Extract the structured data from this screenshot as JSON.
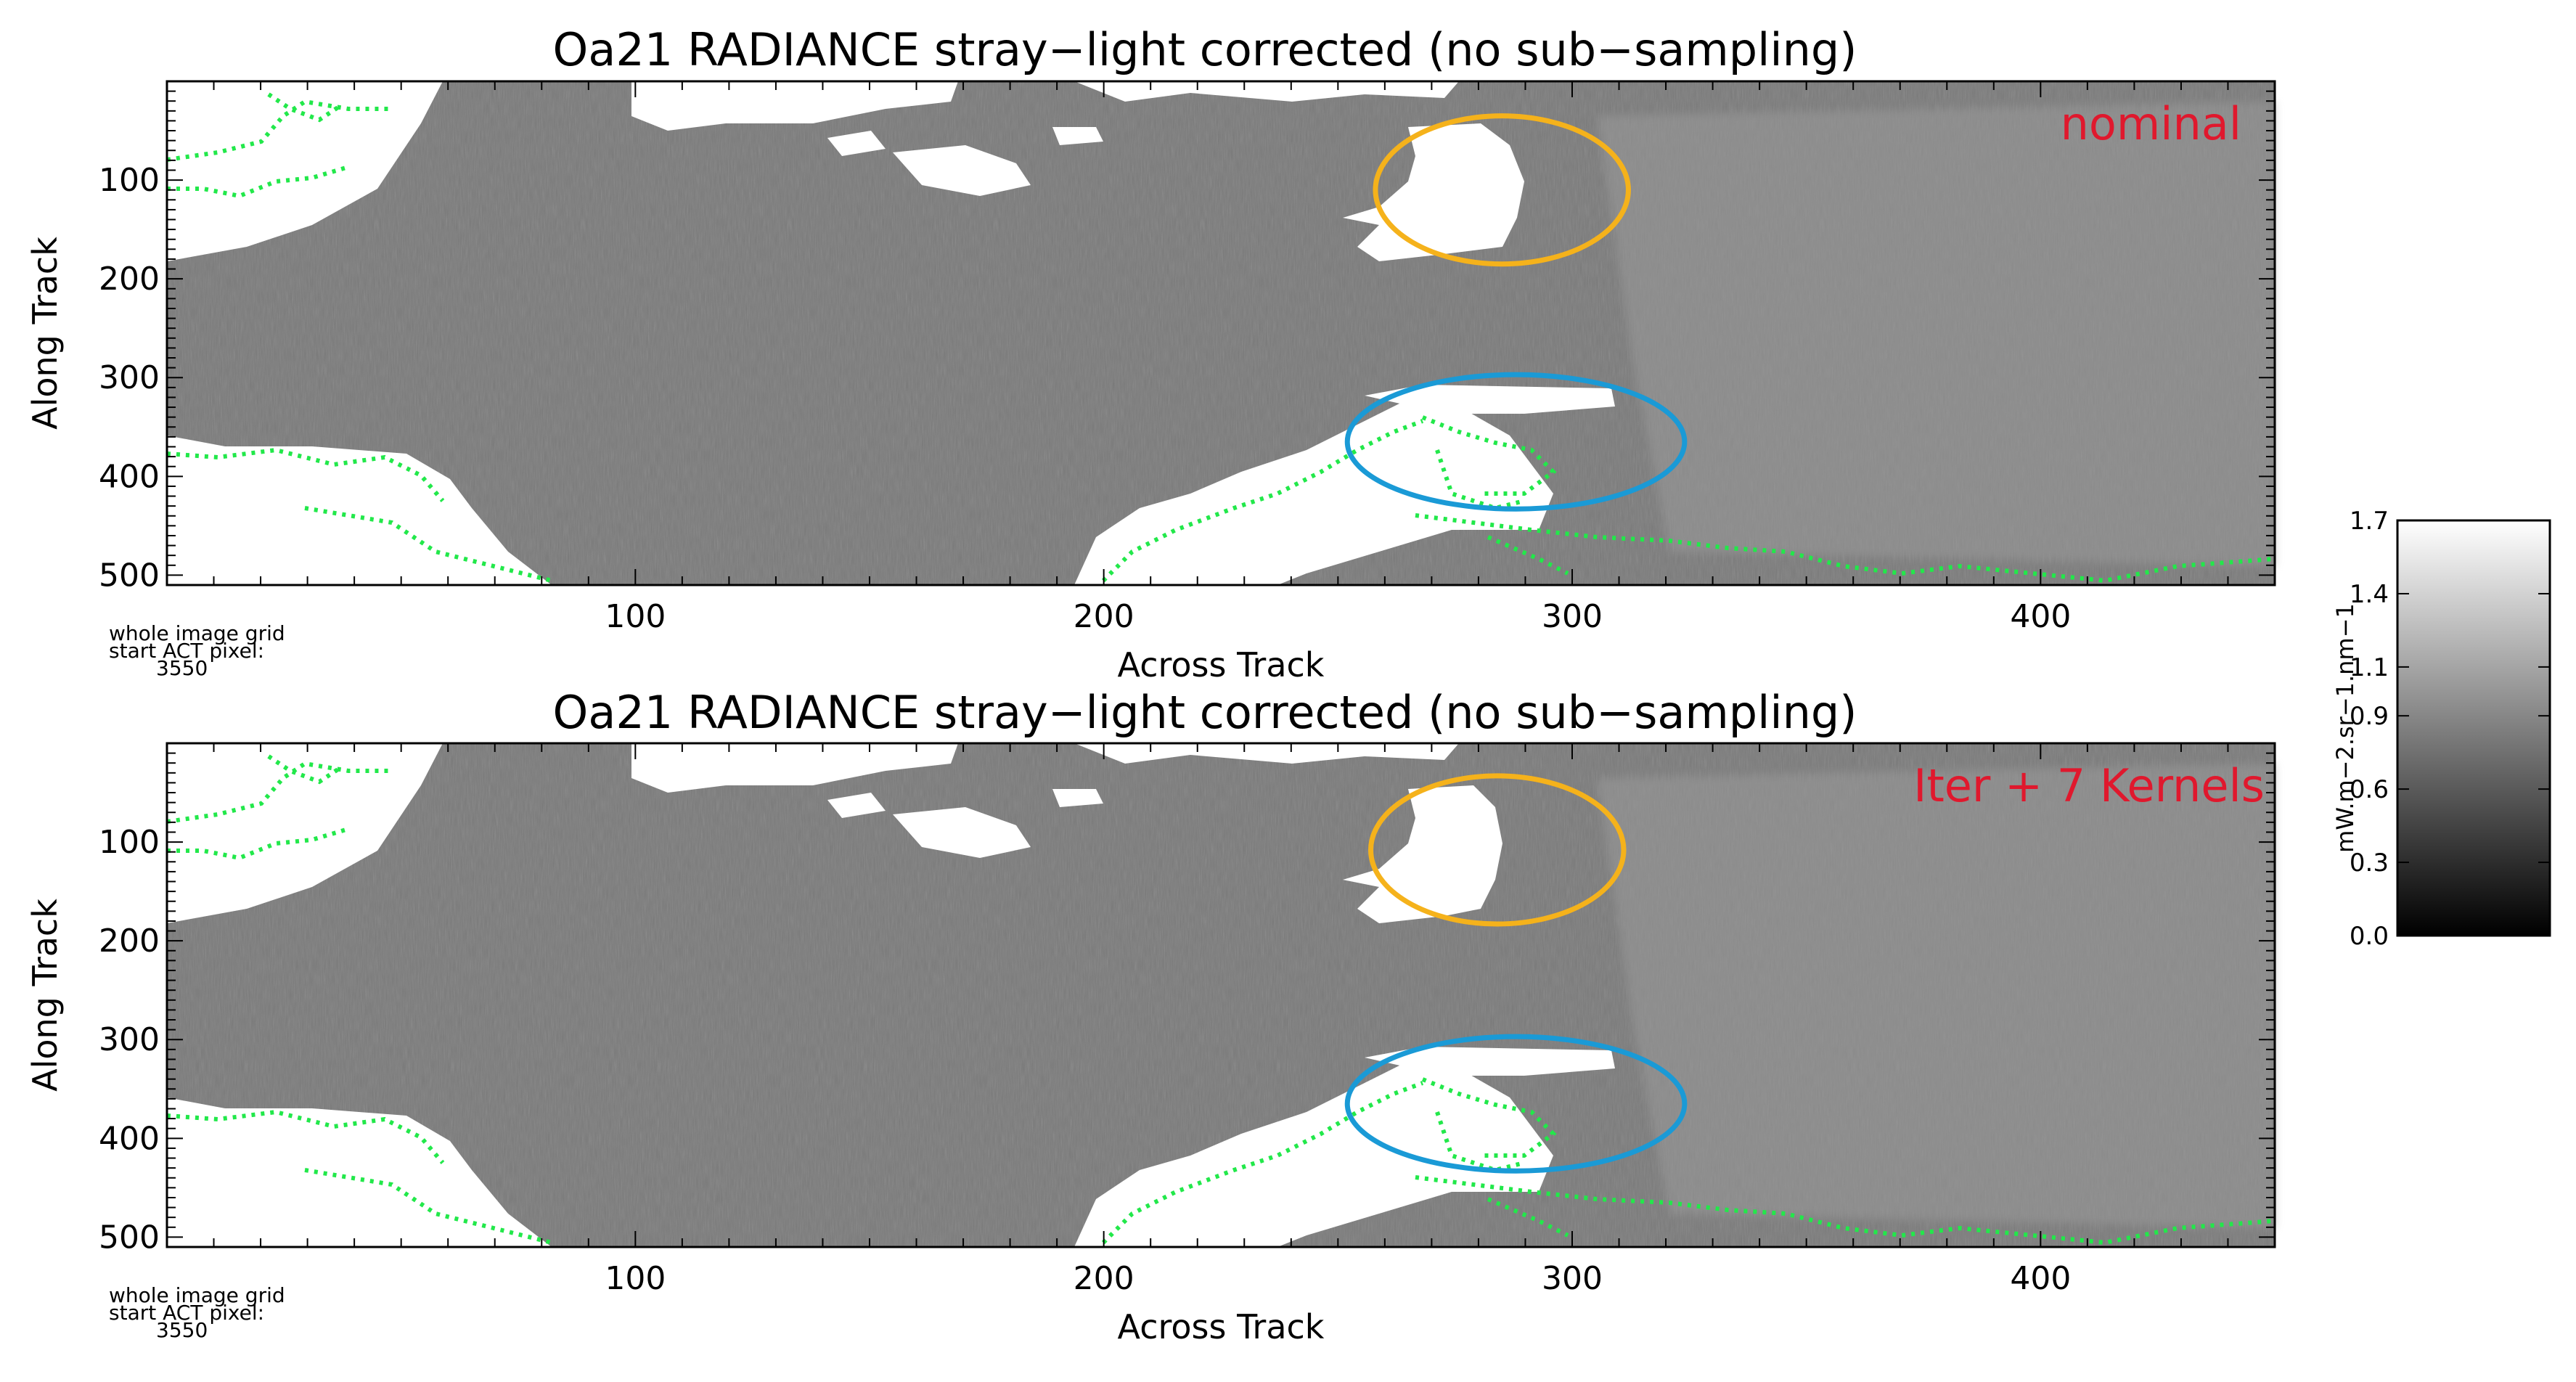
{
  "chart_data": [
    {
      "type": "heatmap",
      "title": "Oa21 RADIANCE stray−light corrected (no sub−sampling)",
      "xlabel": "Across Track",
      "ylabel": "Along Track",
      "annotation": "nominal",
      "annotation_color": "#e0182d",
      "xlim": [
        0,
        450
      ],
      "ylim": [
        0,
        510
      ],
      "xticks": [
        100,
        200,
        300,
        400
      ],
      "yticks": [
        100,
        200,
        300,
        400,
        500
      ],
      "footnote": [
        "whole image grid",
        "start ACT pixel:",
        "3550"
      ],
      "markers": [
        {
          "name": "orange-ellipse",
          "color": "#f5b21b",
          "center": [
            285,
            110
          ],
          "radius": [
            27,
            75
          ]
        },
        {
          "name": "blue-ellipse",
          "color": "#1a9ad6",
          "center": [
            288,
            365
          ],
          "radius": [
            36,
            68
          ]
        }
      ]
    },
    {
      "type": "heatmap",
      "title": "Oa21 RADIANCE stray−light corrected (no sub−sampling)",
      "xlabel": "Across Track",
      "ylabel": "Along Track",
      "annotation": "Iter + 7 Kernels",
      "annotation_color": "#e0182d",
      "xlim": [
        0,
        450
      ],
      "ylim": [
        0,
        510
      ],
      "xticks": [
        100,
        200,
        300,
        400
      ],
      "yticks": [
        100,
        200,
        300,
        400,
        500
      ],
      "footnote": [
        "whole image grid",
        "start ACT pixel:",
        "3550"
      ],
      "markers": [
        {
          "name": "orange-ellipse",
          "color": "#f5b21b",
          "center": [
            284,
            108
          ],
          "radius": [
            27,
            75
          ]
        },
        {
          "name": "blue-ellipse",
          "color": "#1a9ad6",
          "center": [
            288,
            365
          ],
          "radius": [
            36,
            68
          ]
        }
      ]
    }
  ],
  "colorbar": {
    "label": "mW.m−2.sr−1.nm−1",
    "ticks": [
      "1.7",
      "1.4",
      "1.1",
      "0.9",
      "0.6",
      "0.3",
      "0.0"
    ],
    "min": 0.0,
    "max": 1.7
  },
  "colors": {
    "coastline": "#22e84a",
    "water": "#7a7a7a",
    "land": "#ffffff"
  }
}
